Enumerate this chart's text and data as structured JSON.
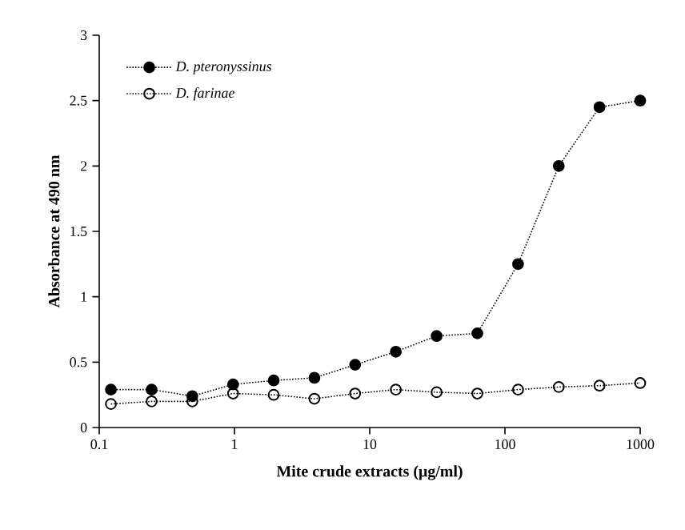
{
  "chart_data": {
    "type": "line",
    "xlabel": "Mite crude extracts (μg/ml)",
    "ylabel": "Absorbance at 490 nm",
    "x": [
      0.122,
      0.244,
      0.488,
      0.977,
      1.95,
      3.9,
      7.8,
      15.6,
      31.25,
      62.5,
      125,
      250,
      500,
      1000
    ],
    "series": [
      {
        "name": "D. pteronyssinus",
        "color": "#000000",
        "marker": "circle",
        "values": [
          0.29,
          0.29,
          0.24,
          0.33,
          0.36,
          0.38,
          0.48,
          0.58,
          0.7,
          0.72,
          1.25,
          2.0,
          2.45,
          2.5
        ]
      },
      {
        "name": "D. farinae",
        "color": "#000000",
        "marker": "open circle",
        "values": [
          0.18,
          0.2,
          0.2,
          0.26,
          0.25,
          0.22,
          0.26,
          0.29,
          0.27,
          0.26,
          0.29,
          0.31,
          0.32,
          0.34
        ]
      }
    ],
    "log": "x",
    "xlim": [
      0.1,
      1000
    ],
    "xticks": [
      0.1,
      1,
      10,
      100,
      1000
    ],
    "ylim": [
      0,
      3
    ],
    "yticks": [
      0,
      0.5,
      1,
      1.5,
      2,
      2.5,
      3
    ],
    "grid": false,
    "legend": "top left",
    "line_style": "dotted"
  }
}
